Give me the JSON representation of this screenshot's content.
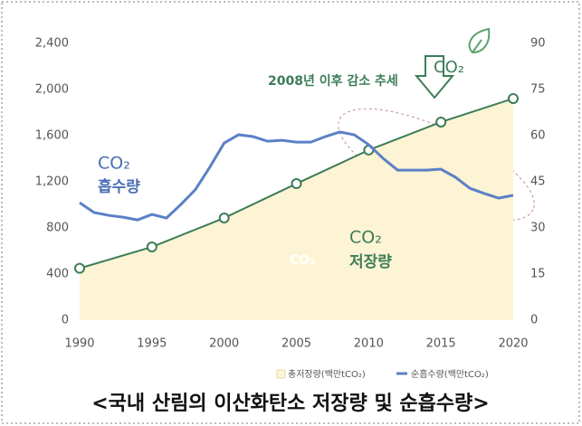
{
  "chart_data": {
    "type": "line",
    "caption": "<국내 산림의 이산화탄소 저장량 및 순흡수량>",
    "annotations": [
      "2008년 이후 감소 추세",
      "CO₂",
      "흡수량",
      "CO₂",
      "저장량",
      "CO₂",
      "CO₂"
    ],
    "xlim": [
      1990,
      2020
    ],
    "xticks": [
      1990,
      1995,
      2000,
      2005,
      2010,
      2015,
      2020
    ],
    "ylim": [
      0,
      2400
    ],
    "yticks": [
      0,
      400,
      800,
      {
        "value": 1200,
        "label": "1,200"
      },
      {
        "value": 1600,
        "label": "1,600"
      },
      {
        "value": 2000,
        "label": "2,000"
      },
      {
        "value": 2400,
        "label": "2,400"
      }
    ],
    "y2lim": [
      0,
      90
    ],
    "y2ticks": [
      0,
      15,
      30,
      45,
      60,
      75,
      90
    ],
    "series": [
      {
        "name": "총저장량(백만tCO₂)",
        "color": "#3d7d58",
        "fill": "#fcf4d4",
        "x": [
          1990,
          1995,
          2000,
          2005,
          2010,
          2015,
          2020
        ],
        "values": [
          450,
          635,
          886,
          1184,
          1475,
          1718,
          1922
        ]
      },
      {
        "name": "순흡수량(백만tCO₂)",
        "color": "#5b80c6",
        "axis": "y2",
        "x": [
          1990,
          1991,
          1992,
          1993,
          1994,
          1995,
          1996,
          1997,
          1998,
          1999,
          2000,
          2001,
          2002,
          2003,
          2004,
          2005,
          2006,
          2007,
          2008,
          2009,
          2010,
          2011,
          2012,
          2013,
          2014,
          2015,
          2016,
          2017,
          2018,
          2019,
          2020
        ],
        "values": [
          38.2,
          35,
          34.1,
          33.5,
          32.6,
          34.4,
          33.2,
          37.6,
          42.4,
          49.7,
          57.6,
          60.3,
          59.7,
          58.2,
          58.5,
          57.9,
          57.9,
          59.7,
          61.2,
          60.3,
          57.1,
          52.6,
          48.8,
          48.8,
          48.8,
          49.1,
          46.5,
          42.9,
          41.2,
          39.7,
          40.6
        ]
      }
    ]
  }
}
